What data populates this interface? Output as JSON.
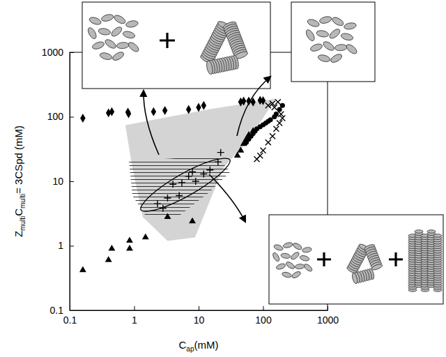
{
  "chart_data": {
    "type": "scatter",
    "x_label_parts": [
      "C",
      "ap",
      "(mM)"
    ],
    "y_label_parts": [
      "Z",
      "multi",
      "C",
      "multi",
      "= 3CSpd (mM)"
    ],
    "log": true,
    "grid": false,
    "xlim": [
      0.1,
      1000
    ],
    "ylim": [
      0.1,
      1000
    ],
    "xticks": [
      0.1,
      1,
      10,
      100,
      1000
    ],
    "yticks": [
      0.1,
      1,
      10,
      100,
      1000
    ],
    "series": [
      {
        "type": "area",
        "color": "#d4d4d4",
        "x": [
          0.73,
          14.5,
          155,
          65,
          24,
          8.8,
          3.3,
          1.36,
          0.94
        ],
        "values": [
          74,
          131,
          190,
          49,
          16,
          1.35,
          1.19,
          2.8,
          16
        ]
      },
      {
        "type": "hatched",
        "color": "#333333",
        "x": [
          0.83,
          18.6,
          31,
          14.5,
          4.7,
          1.55,
          0.94
        ],
        "values": [
          20.5,
          25,
          14,
          6.7,
          2.8,
          2.8,
          6
        ]
      },
      {
        "type": "outline",
        "color": "#000000",
        "x": [
          30.6,
          21.6,
          7.6,
          2.36,
          1.27,
          1.79,
          5.1,
          16.4
        ],
        "values": [
          21.5,
          13,
          6.25,
          3.7,
          3.6,
          6.0,
          12.5,
          21
        ]
      },
      {
        "type": "scatter",
        "marker": "diamond",
        "color": "#000000",
        "x": [
          0.16,
          0.4,
          0.45,
          0.8,
          0.82,
          2,
          3,
          7,
          10,
          12,
          45,
          50,
          60,
          70,
          90,
          100
        ],
        "values": [
          95,
          115,
          120,
          118,
          112,
          120,
          125,
          130,
          140,
          150,
          170,
          175,
          175,
          170,
          180,
          178
        ]
      },
      {
        "type": "scatter",
        "marker": "triangle",
        "color": "#000000",
        "x": [
          0.16,
          0.4,
          0.45,
          0.85,
          0.85,
          1.5,
          3.3,
          8,
          40,
          45,
          50,
          55,
          60,
          70
        ],
        "values": [
          0.42,
          0.6,
          0.9,
          0.9,
          1.2,
          1.35,
          2.8,
          2.4,
          25,
          30,
          38,
          45,
          52,
          60
        ]
      },
      {
        "type": "scatter",
        "marker": "circle",
        "color": "#000000",
        "x": [
          55,
          60,
          65,
          70,
          75,
          80,
          90,
          100,
          110,
          120,
          130,
          150,
          160,
          180,
          200
        ],
        "values": [
          40,
          45,
          50,
          55,
          60,
          65,
          70,
          75,
          80,
          85,
          90,
          100,
          110,
          130,
          150
        ]
      },
      {
        "type": "scatter",
        "marker": "x",
        "color": "#000000",
        "x": [
          80,
          90,
          100,
          120,
          140,
          160,
          180,
          200,
          190,
          150,
          120,
          170,
          140
        ],
        "values": [
          22,
          25,
          30,
          40,
          50,
          65,
          80,
          95,
          110,
          140,
          150,
          170,
          160
        ]
      },
      {
        "type": "scatter",
        "marker": "plus",
        "color": "#000000",
        "x": [
          2.3,
          2.8,
          3.3,
          4,
          5,
          5.5,
          7,
          8,
          9,
          12,
          15,
          20,
          22
        ],
        "values": [
          4.5,
          3.8,
          5.5,
          9,
          6,
          9.5,
          12,
          14,
          10,
          13,
          15,
          20,
          28
        ]
      }
    ]
  }
}
